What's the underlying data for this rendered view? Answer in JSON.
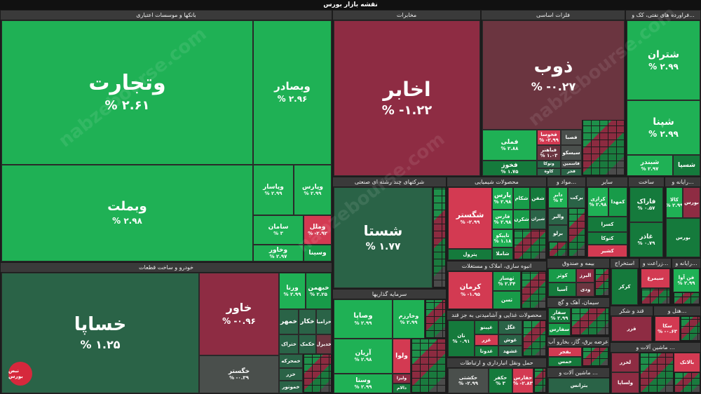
{
  "title": "نقشه بازار بورس",
  "watermark": "nabzebourse.com",
  "logo": "نبض بورس",
  "sectors": {
    "banks": "بانکها و موسسات اعتباری",
    "auto": "خودرو و ساخت قطعات",
    "khayrat": "مخابرات",
    "metals": "فلزات اساسی",
    "oil": "فراورده های نفتی، کک و...",
    "multi": "شرکتهای چند رشته ای صنعتی",
    "chemical": "محصولات شیمیایی",
    "invest": "سرمایه گذاریها",
    "mine": "مواد و...",
    "food": "محصولات غذایی و آشامیدنی به جز قند",
    "mass": "انبوه سازی، املاک و مستغلات",
    "transport": "حمل ونقل انبارداری و ارتباطات",
    "cement": "سیمان، آهک و گچ",
    "insurance": "بیمه و صندوق",
    "pharma": "مواد و...",
    "sugar": "قند و شکر",
    "machinery": "ماشین آلات و ...",
    "tech": "رایانه و...",
    "farm": "زراعت و...",
    "extract": "استخراج",
    "build": "ساخت",
    "electric": "عرضه برق، گاز، بخارو آب",
    "kani": "کانی غیر فلزی",
    "hotel": "هتل و...",
    "sayer": "سایر"
  },
  "tiles": {
    "vtejarat": {
      "name": "وتجارت",
      "pct": "% ۲.۶۱"
    },
    "vbemellat": {
      "name": "وبملت",
      "pct": "% ۲.۹۸"
    },
    "vbsader": {
      "name": "وبصادر",
      "pct": "% ۲.۹۶"
    },
    "vpasar": {
      "name": "وپاسار",
      "pct": "% ۲.۹۹"
    },
    "vparas": {
      "name": "وپارس",
      "pct": "% ۲.۹۹"
    },
    "saman": {
      "name": "سامان",
      "pct": "% ۳"
    },
    "vmal": {
      "name": "وملل",
      "pct": "% -۲.۹۲"
    },
    "vkhavar": {
      "name": "وخاور",
      "pct": "% ۲.۹۷"
    },
    "vsina": {
      "name": "وسینا",
      "pct": ""
    },
    "khsapa": {
      "name": "خساپا",
      "pct": "% ۱.۲۵"
    },
    "khavar": {
      "name": "خاور",
      "pct": "% -۰.۹۶"
    },
    "khgostar": {
      "name": "خگستر",
      "pct": "% -۰.۳۹"
    },
    "vrena": {
      "name": "ورنا",
      "pct": "% ۲.۹۹"
    },
    "khbahman": {
      "name": "خبهمن",
      "pct": "% ۲.۲۵"
    },
    "khemhor": {
      "name": "خمهر",
      "pct": ""
    },
    "khkar": {
      "name": "خکار",
      "pct": ""
    },
    "khzamia": {
      "name": "خزامیا",
      "pct": ""
    },
    "khtraktor": {
      "name": "ختراک",
      "pct": ""
    },
    "khkamak": {
      "name": "خکمک",
      "pct": ""
    },
    "khodinal": {
      "name": "خدیزل",
      "pct": ""
    },
    "khmehrkh": {
      "name": "خمحرکه",
      "pct": ""
    },
    "khzar": {
      "name": "خزر",
      "pct": ""
    },
    "khamoot": {
      "name": "خموتور",
      "pct": ""
    },
    "akhabar": {
      "name": "اخابر",
      "pct": "% -۱.۲۲"
    },
    "zob": {
      "name": "ذوب",
      "pct": "% -۰.۲۷"
    },
    "fameli": {
      "name": "فملی",
      "pct": "% ۲.۸۸"
    },
    "fkhoz": {
      "name": "فخوز",
      "pct": "% ۱.۷۵"
    },
    "fkhosa": {
      "name": "فخوسا",
      "pct": "% -۲.۹۹"
    },
    "fsabsa": {
      "name": "فصبا",
      "pct": ""
    },
    "sisko": {
      "name": "سیسکو",
      "pct": ""
    },
    "fajhan": {
      "name": "فباهنر",
      "pct": "% ۱.۰۳"
    },
    "fasmin": {
      "name": "فاسمین",
      "pct": ""
    },
    "votka": {
      "name": "وتوکا",
      "pct": ""
    },
    "kave": {
      "name": "کاوه",
      "pct": ""
    },
    "fjar": {
      "name": "فجر",
      "pct": ""
    },
    "shetran": {
      "name": "شتران",
      "pct": "% ۲.۹۹"
    },
    "shepna": {
      "name": "شپنا",
      "pct": "% ۲.۹۹"
    },
    "shbandar": {
      "name": "شبندر",
      "pct": "% ۲.۹۷"
    },
    "shsina": {
      "name": "شسپا",
      "pct": ""
    },
    "shasta": {
      "name": "شستا",
      "pct": "% ۱.۷۷"
    },
    "vsepa": {
      "name": "وصاپا",
      "pct": "% ۲.۹۹"
    },
    "vkharazm": {
      "name": "وخارزم",
      "pct": "% ۲.۹۹"
    },
    "arian": {
      "name": "آریان",
      "pct": "% ۲.۹۸"
    },
    "vsta": {
      "name": "وستا",
      "pct": "% ۲.۹۹"
    },
    "parsan": {
      "name": "پارس",
      "pct": "% ۲.۹۸"
    },
    "shekam": {
      "name": "شکام",
      "pct": ""
    },
    "shafan": {
      "name": "شفن",
      "pct": ""
    },
    "fars": {
      "name": "فارس",
      "pct": "% ۲.۹۸"
    },
    "shekarn": {
      "name": "شکرن",
      "pct": ""
    },
    "shgostar": {
      "name": "شگستر",
      "pct": "% -۲.۹۹"
    },
    "tapiko": {
      "name": "تاپیکو",
      "pct": "% ۱.۱۸"
    },
    "shaplast": {
      "name": "شاملا",
      "pct": ""
    },
    "petrol": {
      "name": "پترول",
      "pct": ""
    },
    "shiran": {
      "name": "شیران",
      "pct": ""
    },
    "vtapi": {
      "name": "وتاپی",
      "pct": ""
    },
    "daber": {
      "name": "دابر",
      "pct": "% ۳"
    },
    "barekat": {
      "name": "برکت",
      "pct": ""
    },
    "valbor": {
      "name": "والبر",
      "pct": ""
    },
    "brava": {
      "name": "برلو",
      "pct": ""
    },
    "krazi": {
      "name": "کرازی",
      "pct": "% ۲.۹۸"
    },
    "kamhdnd": {
      "name": "کمهدا",
      "pct": ""
    },
    "ksra": {
      "name": "کسرا",
      "pct": ""
    },
    "katoka": {
      "name": "کتوکا",
      "pct": ""
    },
    "kashir": {
      "name": "کشیر",
      "pct": ""
    },
    "kerman": {
      "name": "کرمان",
      "pct": "% -۱.۹۵"
    },
    "themsaz": {
      "name": "ثهساز",
      "pct": "% ۲.۳۴"
    },
    "thbahn": {
      "name": "ثامان",
      "pct": "% ۲.۸۷"
    },
    "tasasn": {
      "name": "ثسن",
      "pct": ""
    },
    "ghgol": {
      "name": "غگل",
      "pct": ""
    },
    "ghnin": {
      "name": "غپینو",
      "pct": ""
    },
    "ghnosh": {
      "name": "نان",
      "pct": "% ۰.۹۱"
    },
    "ghzar": {
      "name": "غزر",
      "pct": ""
    },
    "ghoresh": {
      "name": "غوش",
      "pct": ""
    },
    "ghdota": {
      "name": "غدوتا",
      "pct": ""
    },
    "ghsha": {
      "name": "غشهد",
      "pct": ""
    },
    "ghalan": {
      "name": "ولبن",
      "pct": ""
    },
    "ghbahr": {
      "name": "غبهار",
      "pct": ""
    },
    "valo": {
      "name": "ولوا",
      "pct": ""
    },
    "vliza": {
      "name": "ولیزا",
      "pct": ""
    },
    "dalam": {
      "name": "دالام",
      "pct": ""
    },
    "hkeshti": {
      "name": "حکشتی",
      "pct": "% -۲.۹۹"
    },
    "hkfar": {
      "name": "حکفر",
      "pct": "% ۳"
    },
    "hfars": {
      "name": "حفارس",
      "pct": "% -۲.۸۳"
    },
    "kvthr": {
      "name": "کوثر",
      "pct": ""
    },
    "albrz": {
      "name": "البرز",
      "pct": ""
    },
    "atla": {
      "name": "آتلا",
      "pct": ""
    },
    "asia": {
      "name": "آسیا",
      "pct": ""
    },
    "vdi": {
      "name": "ودی",
      "pct": ""
    },
    "stvr": {
      "name": "سفار",
      "pct": "% ۲.۹۹"
    },
    "sfars": {
      "name": "سفارس",
      "pct": ""
    },
    "sdstv": {
      "name": "سخزر",
      "pct": ""
    },
    "ssfahan": {
      "name": "سیستو",
      "pct": ""
    },
    "sarm": {
      "name": "سارم",
      "pct": ""
    },
    "bfajr": {
      "name": "بفجر",
      "pct": ""
    },
    "tamhan": {
      "name": "ثامین",
      "pct": ""
    },
    "bmpna": {
      "name": "بمپنا",
      "pct": ""
    },
    "khsa": {
      "name": "خمس",
      "pct": ""
    },
    "mabna": {
      "name": "مبین",
      "pct": ""
    },
    "btrans": {
      "name": "بترانس",
      "pct": ""
    },
    "faraz": {
      "name": "فاراک",
      "pct": "% ۰.۵۷"
    },
    "kala": {
      "name": "کالا",
      "pct": "% ۲.۹۹"
    },
    "brva": {
      "name": "بورس",
      "pct": ""
    },
    "fabour": {
      "name": "فابورس",
      "pct": ""
    },
    "ghazal": {
      "name": "غاذر",
      "pct": "% ۰.۷۹"
    },
    "brx": {
      "name": "بورس",
      "pct": ""
    },
    "krkhn": {
      "name": "کرکر",
      "pct": ""
    },
    "smrg": {
      "name": "سیمرغ",
      "pct": ""
    },
    "zmlrd": {
      "name": "زملارد",
      "pct": ""
    },
    "fn": {
      "name": "فن آوا",
      "pct": "% ۲.۹۹"
    },
    "ghzzr": {
      "name": "قزر",
      "pct": ""
    },
    "ghsabt": {
      "name": "قصبات",
      "pct": ""
    },
    "sakna": {
      "name": "سکا",
      "pct": "% -۰.۶۳"
    },
    "ksaba": {
      "name": "کسبا",
      "pct": ""
    },
    "lkhazar": {
      "name": "لخزر",
      "pct": ""
    },
    "ltapi": {
      "name": "لتاپیا",
      "pct": ""
    },
    "vsalem": {
      "name": "ولساپا",
      "pct": ""
    },
    "baltak": {
      "name": "بالاتک",
      "pct": ""
    },
    "sayerkh": {
      "name": "سایر واسطه",
      "pct": ""
    }
  }
}
